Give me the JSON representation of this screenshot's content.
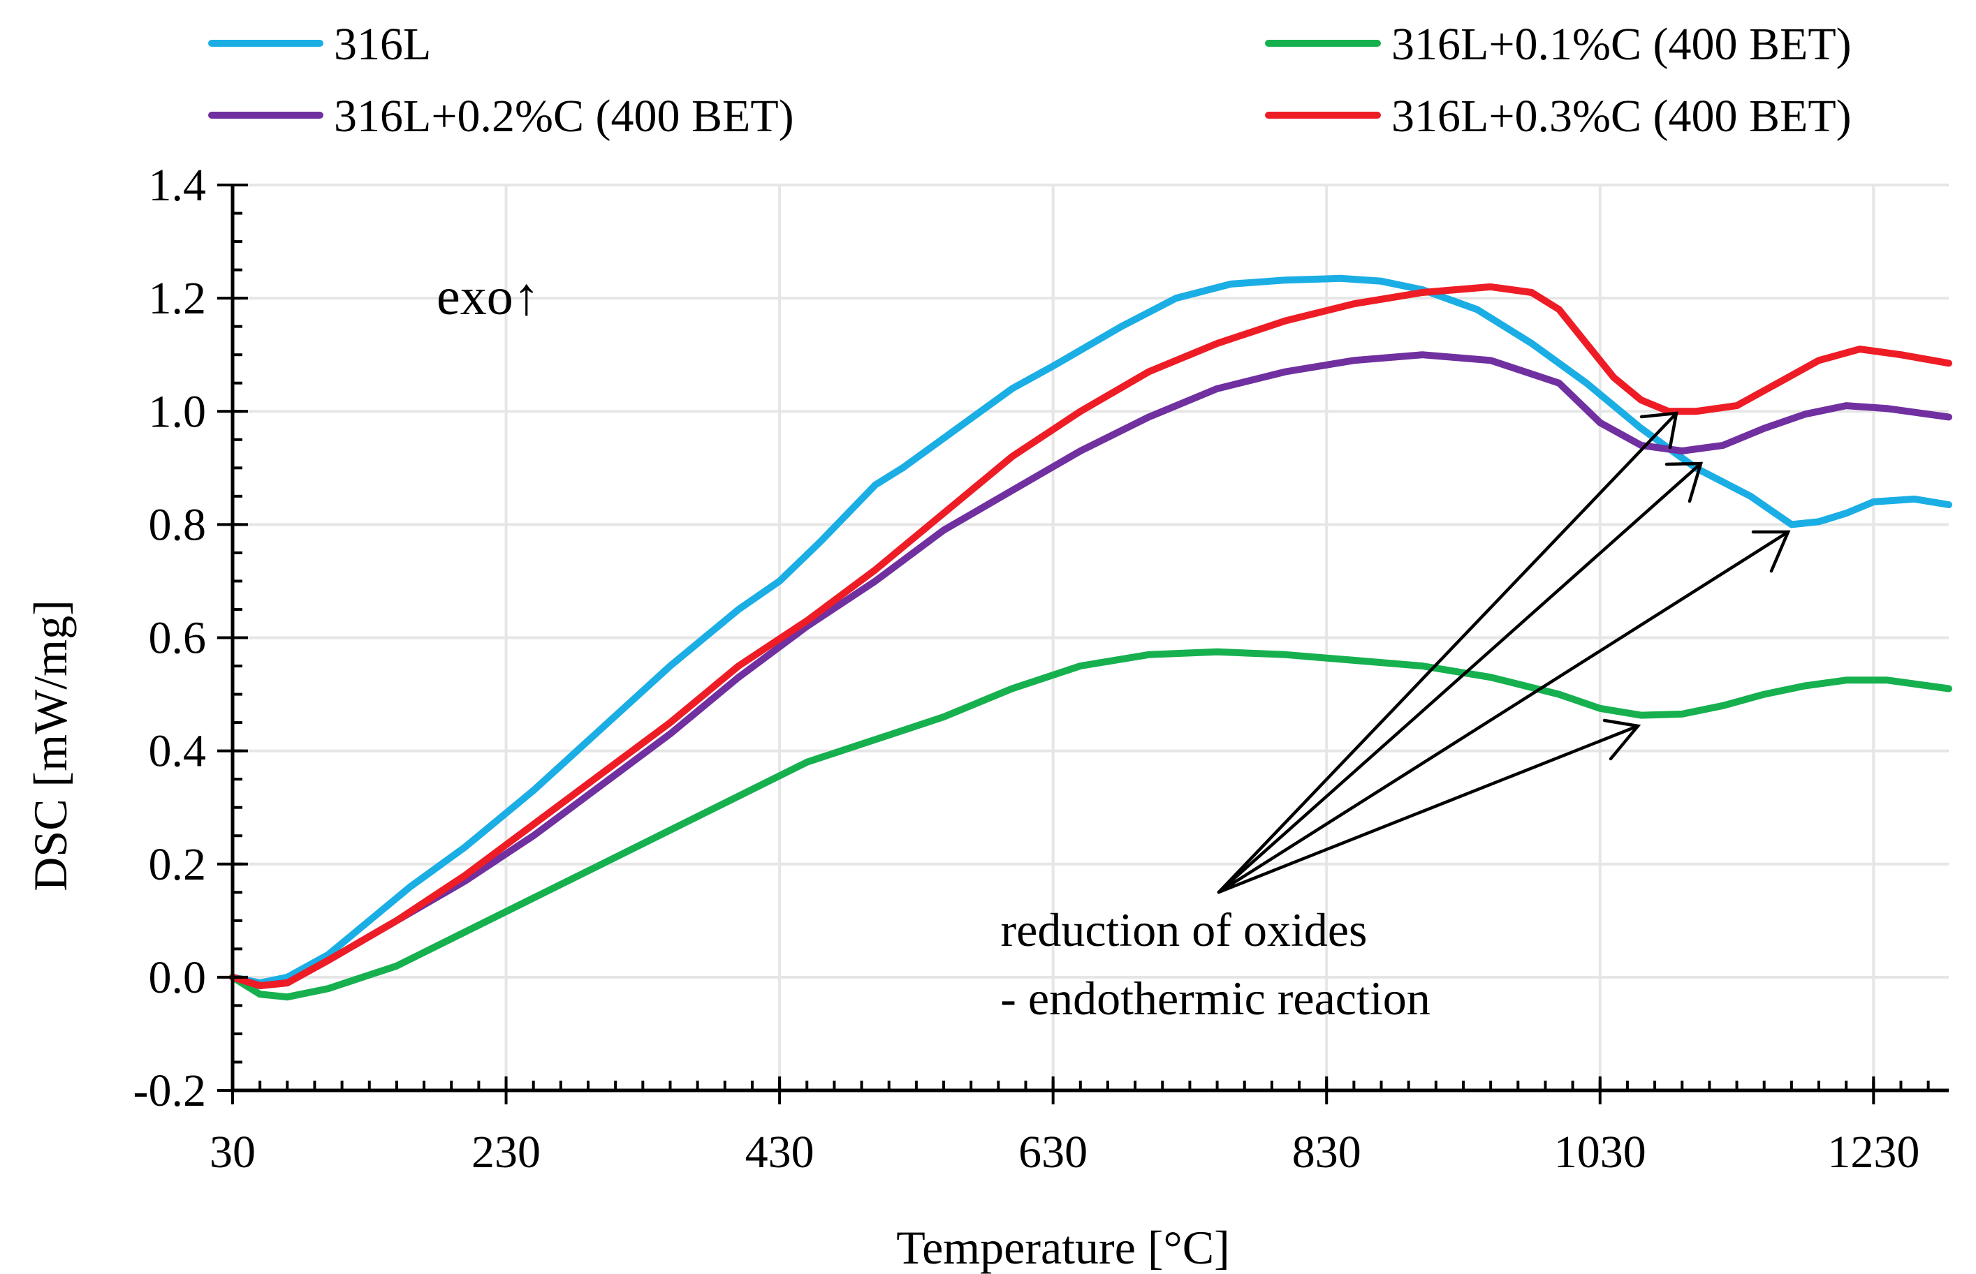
{
  "chart_data": {
    "type": "line",
    "title": "",
    "xlabel": "Temperature [°C]",
    "ylabel": "DSC [mW/mg]",
    "xlim": [
      30,
      1285
    ],
    "ylim": [
      -0.2,
      1.4
    ],
    "x_ticks": [
      30,
      230,
      430,
      630,
      830,
      1030,
      1230
    ],
    "x_tick_labels": [
      "30",
      "230",
      "430",
      "630",
      "830",
      "1030",
      "1230"
    ],
    "x_minor_step": 20,
    "y_ticks": [
      -0.2,
      0.0,
      0.2,
      0.4,
      0.6,
      0.8,
      1.0,
      1.2,
      1.4
    ],
    "y_tick_labels": [
      "-0.2",
      "0.0",
      "0.2",
      "0.4",
      "0.6",
      "0.8",
      "1.0",
      "1.2",
      "1.4"
    ],
    "y_minor_step": 0.05,
    "grid": true,
    "legend_position": "top",
    "series": [
      {
        "name": "316L",
        "color": "#1aaee5",
        "x": [
          30,
          50,
          70,
          100,
          130,
          160,
          200,
          250,
          300,
          350,
          400,
          430,
          460,
          500,
          520,
          560,
          600,
          630,
          680,
          720,
          760,
          800,
          840,
          870,
          900,
          940,
          980,
          1020,
          1060,
          1100,
          1140,
          1170,
          1190,
          1210,
          1230,
          1260,
          1285
        ],
        "y": [
          0.0,
          -0.01,
          0.0,
          0.04,
          0.1,
          0.16,
          0.23,
          0.33,
          0.44,
          0.55,
          0.65,
          0.7,
          0.77,
          0.87,
          0.9,
          0.97,
          1.04,
          1.08,
          1.15,
          1.2,
          1.225,
          1.232,
          1.235,
          1.23,
          1.215,
          1.18,
          1.12,
          1.05,
          0.97,
          0.9,
          0.85,
          0.8,
          0.805,
          0.82,
          0.84,
          0.845,
          0.835
        ]
      },
      {
        "name": "316L+0.1%C (400 BET)",
        "color": "#16b04f",
        "x": [
          30,
          50,
          70,
          100,
          150,
          200,
          250,
          300,
          350,
          400,
          450,
          500,
          550,
          600,
          650,
          700,
          750,
          800,
          850,
          900,
          950,
          1000,
          1030,
          1060,
          1090,
          1120,
          1150,
          1180,
          1210,
          1240,
          1285
        ],
        "y": [
          0.0,
          -0.03,
          -0.035,
          -0.02,
          0.02,
          0.08,
          0.14,
          0.2,
          0.26,
          0.32,
          0.38,
          0.42,
          0.46,
          0.51,
          0.55,
          0.57,
          0.575,
          0.57,
          0.56,
          0.55,
          0.53,
          0.5,
          0.475,
          0.463,
          0.465,
          0.48,
          0.5,
          0.515,
          0.525,
          0.525,
          0.51
        ]
      },
      {
        "name": "316L+0.2%C (400 BET)",
        "color": "#7030a0",
        "x": [
          30,
          50,
          70,
          100,
          150,
          200,
          250,
          300,
          350,
          400,
          450,
          500,
          550,
          600,
          650,
          700,
          750,
          800,
          850,
          900,
          950,
          1000,
          1030,
          1060,
          1090,
          1120,
          1150,
          1180,
          1210,
          1240,
          1285
        ],
        "y": [
          0.0,
          -0.015,
          -0.01,
          0.03,
          0.1,
          0.17,
          0.25,
          0.34,
          0.43,
          0.53,
          0.62,
          0.7,
          0.79,
          0.86,
          0.93,
          0.99,
          1.04,
          1.07,
          1.09,
          1.1,
          1.09,
          1.05,
          0.98,
          0.94,
          0.93,
          0.94,
          0.97,
          0.995,
          1.01,
          1.005,
          0.99
        ]
      },
      {
        "name": "316L+0.3%C (400 BET)",
        "color": "#ee1c25",
        "x": [
          30,
          50,
          70,
          100,
          150,
          200,
          250,
          300,
          350,
          400,
          450,
          500,
          550,
          600,
          650,
          700,
          750,
          800,
          850,
          900,
          950,
          980,
          1000,
          1020,
          1040,
          1060,
          1080,
          1100,
          1130,
          1160,
          1190,
          1220,
          1250,
          1285
        ],
        "y": [
          0.0,
          -0.015,
          -0.01,
          0.03,
          0.1,
          0.18,
          0.27,
          0.36,
          0.45,
          0.55,
          0.63,
          0.72,
          0.82,
          0.92,
          1.0,
          1.07,
          1.12,
          1.16,
          1.19,
          1.21,
          1.22,
          1.21,
          1.18,
          1.12,
          1.06,
          1.02,
          1.0,
          1.0,
          1.01,
          1.05,
          1.09,
          1.11,
          1.1,
          1.085
        ]
      }
    ],
    "annotations": {
      "exo_label": "exo↑",
      "note_line1": "reduction of oxides",
      "note_line2": "- endothermic reaction"
    }
  }
}
